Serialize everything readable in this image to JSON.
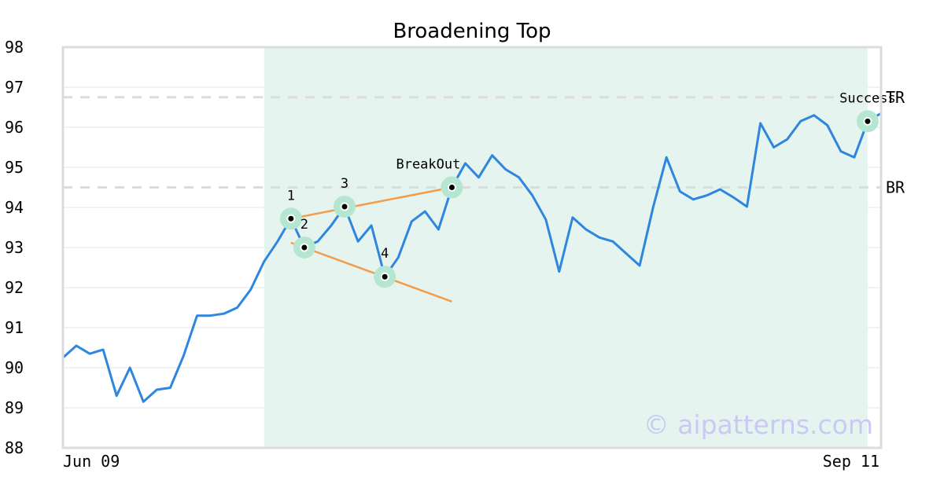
{
  "chart_data": {
    "type": "line",
    "title": "Broadening Top",
    "xlabel": "",
    "ylabel": "",
    "ylim": [
      88,
      98
    ],
    "yticks": [
      88,
      89,
      90,
      91,
      92,
      93,
      94,
      95,
      96,
      97,
      98
    ],
    "x_tick_labels": [
      "Jun 09",
      "Sep 11"
    ],
    "grid": "horizontal",
    "series": [
      {
        "color": "#2e86de",
        "values": [
          90.25,
          90.55,
          90.35,
          90.45,
          89.3,
          90.0,
          89.15,
          89.45,
          89.5,
          90.3,
          91.3,
          91.3,
          91.35,
          91.5,
          91.95,
          92.65,
          93.15,
          93.72,
          93.0,
          93.15,
          93.55,
          94.02,
          93.15,
          93.55,
          92.27,
          92.75,
          93.65,
          93.9,
          93.45,
          94.5,
          95.1,
          94.75,
          95.3,
          94.95,
          94.75,
          94.3,
          93.7,
          92.4,
          93.75,
          93.45,
          93.25,
          93.15,
          92.85,
          92.55,
          94.0,
          95.25,
          94.4,
          94.2,
          94.3,
          94.45,
          94.25,
          94.02,
          96.1,
          95.5,
          95.7,
          96.15,
          96.3,
          96.05,
          95.4,
          95.25,
          96.15,
          96.35
        ]
      }
    ],
    "pattern_region": {
      "from_index": 15,
      "to_index": 60,
      "color": "#e6f4ef"
    },
    "reference_lines": [
      {
        "label": "TR",
        "value": 96.75,
        "color": "#dcdcdc"
      },
      {
        "label": "BR",
        "value": 94.5,
        "color": "#dcdcdc"
      }
    ],
    "trend_lines": [
      {
        "from": [
          17,
          93.72
        ],
        "to": [
          29,
          94.5
        ],
        "color": "#f39c4a"
      },
      {
        "from": [
          17,
          93.12
        ],
        "to": [
          29,
          91.65
        ],
        "color": "#f39c4a"
      }
    ],
    "annotations": [
      {
        "label": "1",
        "index": 17,
        "value": 93.72,
        "label_dx": 0,
        "label_dy": -24
      },
      {
        "label": "2",
        "index": 18,
        "value": 93.0,
        "label_dx": 0,
        "label_dy": -24
      },
      {
        "label": "3",
        "index": 21,
        "value": 94.02,
        "label_dx": 0,
        "label_dy": -24
      },
      {
        "label": "4",
        "index": 24,
        "value": 92.27,
        "label_dx": 0,
        "label_dy": -24
      },
      {
        "label": "BreakOut",
        "index": 29,
        "value": 94.5,
        "label_dx": -30,
        "label_dy": -24
      },
      {
        "label": "Success",
        "index": 60,
        "value": 96.15,
        "label_dx": 0,
        "label_dy": -24
      }
    ],
    "marker_halo_color": "#b5e6d1",
    "line_color": "#2e86de"
  },
  "watermark": "© aipatterns.com"
}
